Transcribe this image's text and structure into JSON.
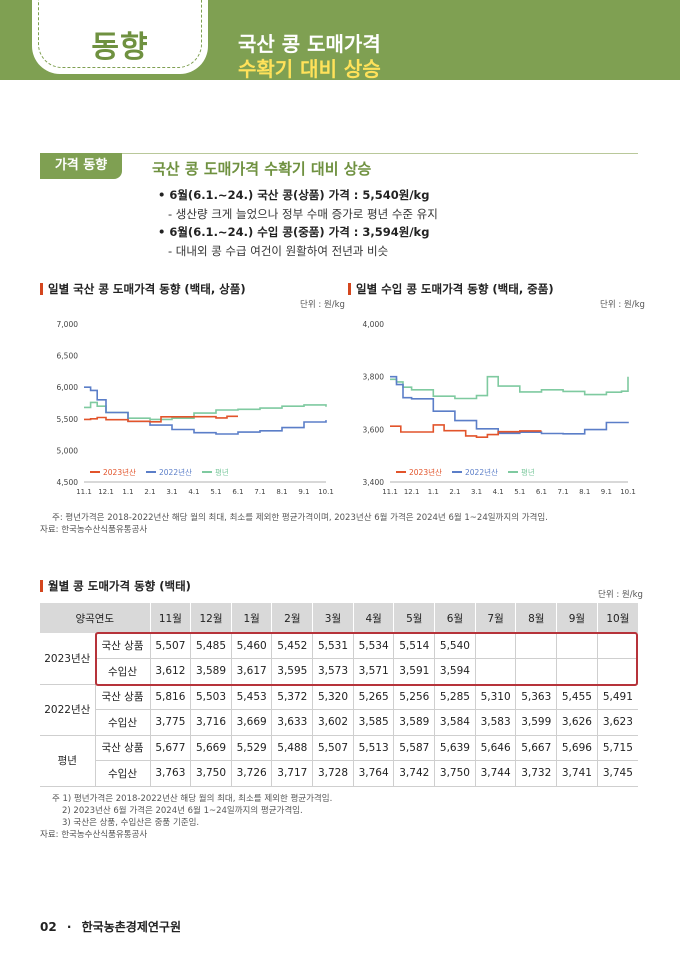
{
  "header": {
    "badge": "동향",
    "title_line1": "국산 콩 도매가격",
    "title_line2": "수확기 대비 상승",
    "bg_color": "#7fa052",
    "accent_color": "#ffe25a"
  },
  "section": {
    "tag": "가격 동향",
    "title": "국산 콩 도매가격 수확기 대비 상승",
    "bullets": [
      {
        "main": "• 6월(6.1.~24.) 국산 콩(상품) 가격 : 5,540원/kg",
        "sub": "- 생산량 크게 늘었으나 정부 수매 증가로 평년 수준 유지"
      },
      {
        "main": "• 6월(6.1.~24.) 수입 콩(중품) 가격 : 3,594원/kg",
        "sub": "- 대내외 콩 수급 여건이 원활하여 전년과 비슷"
      }
    ]
  },
  "chart_data": [
    {
      "type": "line",
      "title": "일별 국산 콩 도매가격 동향 (백태, 상품)",
      "unit": "단위 : 원/kg",
      "ylim": [
        4500,
        7000
      ],
      "yticks": [
        "7,000",
        "6,500",
        "6,000",
        "5,500",
        "5,000",
        "4,500"
      ],
      "xticks": [
        "11.1",
        "12.1",
        "1.1",
        "2.1",
        "3.1",
        "4.1",
        "5.1",
        "6.1",
        "7.1",
        "8.1",
        "9.1",
        "10.1"
      ],
      "legend": [
        "2023년산",
        "2022년산",
        "평년"
      ],
      "series": [
        {
          "name": "2023년산",
          "color": "#e2542b",
          "x": [
            0,
            0.3,
            0.6,
            1,
            2,
            3,
            3.5,
            4,
            5,
            6,
            6.5,
            7.0
          ],
          "values": [
            5490,
            5500,
            5520,
            5485,
            5460,
            5452,
            5531,
            5531,
            5534,
            5514,
            5540,
            5540
          ]
        },
        {
          "name": "2022년산",
          "color": "#5b7ec8",
          "x": [
            0,
            0.3,
            0.6,
            1,
            2,
            3,
            4,
            5,
            6,
            7,
            8,
            9,
            10,
            11
          ],
          "values": [
            6000,
            5950,
            5800,
            5600,
            5460,
            5400,
            5330,
            5280,
            5260,
            5290,
            5310,
            5360,
            5450,
            5480
          ]
        },
        {
          "name": "평년",
          "color": "#7fcaa0",
          "x": [
            0,
            0.3,
            0.6,
            1,
            2,
            3,
            4,
            5,
            6,
            7,
            8,
            9,
            10,
            11
          ],
          "values": [
            5680,
            5760,
            5700,
            5600,
            5510,
            5490,
            5510,
            5590,
            5640,
            5650,
            5670,
            5700,
            5720,
            5690
          ]
        }
      ]
    },
    {
      "type": "line",
      "title": "일별 수입 콩 도매가격 동향 (백태, 중품)",
      "unit": "단위 : 원/kg",
      "ylim": [
        3400,
        4000
      ],
      "yticks": [
        "4,000",
        "3,800",
        "3,600",
        "3,400"
      ],
      "xticks": [
        "11.1",
        "12.1",
        "1.1",
        "2.1",
        "3.1",
        "4.1",
        "5.1",
        "6.1",
        "7.1",
        "8.1",
        "9.1",
        "10.1"
      ],
      "legend": [
        "2023년산",
        "2022년산",
        "평년"
      ],
      "series": [
        {
          "name": "2023년산",
          "color": "#e2542b",
          "x": [
            0,
            0.5,
            1,
            2,
            2.5,
            3,
            3.5,
            4,
            4.5,
            5,
            6,
            7.0
          ],
          "values": [
            3612,
            3590,
            3590,
            3617,
            3595,
            3595,
            3575,
            3570,
            3580,
            3591,
            3594,
            3594
          ]
        },
        {
          "name": "2022년산",
          "color": "#5b7ec8",
          "x": [
            0,
            0.3,
            0.6,
            1,
            2,
            3,
            4,
            5,
            6,
            7,
            8,
            9,
            10,
            11
          ],
          "values": [
            3800,
            3770,
            3720,
            3716,
            3669,
            3633,
            3602,
            3585,
            3589,
            3584,
            3583,
            3599,
            3626,
            3623
          ]
        },
        {
          "name": "평년",
          "color": "#7fcaa0",
          "x": [
            0,
            0.3,
            0.6,
            1,
            2,
            3,
            4,
            4.5,
            5,
            6,
            7,
            8,
            9,
            10,
            10.7,
            11
          ],
          "values": [
            3790,
            3780,
            3760,
            3750,
            3726,
            3717,
            3728,
            3800,
            3764,
            3742,
            3750,
            3744,
            3732,
            3741,
            3745,
            3800
          ]
        }
      ]
    }
  ],
  "chart_note": "주: 평년가격은 2018-2022년산 해당 월의 최대, 최소를 제외한 평균가격이며, 2023년산 6월 가격은 2024년 6월 1~24일까지의 가격임.",
  "chart_source": "자료: 한국농수산식품유통공사",
  "table": {
    "title": "월별 콩 도매가격 동향 (백태)",
    "unit": "단위 : 원/kg",
    "headers": [
      "양곡연도",
      "11월",
      "12월",
      "1월",
      "2월",
      "3월",
      "4월",
      "5월",
      "6월",
      "7월",
      "8월",
      "9월",
      "10월"
    ],
    "groups": [
      {
        "year": "2023년산",
        "rows": [
          {
            "label": "국산 상품",
            "values": [
              "5,507",
              "5,485",
              "5,460",
              "5,452",
              "5,531",
              "5,534",
              "5,514",
              "5,540",
              "",
              "",
              "",
              ""
            ]
          },
          {
            "label": "수입산",
            "values": [
              "3,612",
              "3,589",
              "3,617",
              "3,595",
              "3,573",
              "3,571",
              "3,591",
              "3,594",
              "",
              "",
              "",
              ""
            ]
          }
        ]
      },
      {
        "year": "2022년산",
        "rows": [
          {
            "label": "국산 상품",
            "values": [
              "5,816",
              "5,503",
              "5,453",
              "5,372",
              "5,320",
              "5,265",
              "5,256",
              "5,285",
              "5,310",
              "5,363",
              "5,455",
              "5,491"
            ]
          },
          {
            "label": "수입산",
            "values": [
              "3,775",
              "3,716",
              "3,669",
              "3,633",
              "3,602",
              "3,585",
              "3,589",
              "3,584",
              "3,583",
              "3,599",
              "3,626",
              "3,623"
            ]
          }
        ]
      },
      {
        "year": "평년",
        "rows": [
          {
            "label": "국산 상품",
            "values": [
              "5,677",
              "5,669",
              "5,529",
              "5,488",
              "5,507",
              "5,513",
              "5,587",
              "5,639",
              "5,646",
              "5,667",
              "5,696",
              "5,715"
            ]
          },
          {
            "label": "수입산",
            "values": [
              "3,763",
              "3,750",
              "3,726",
              "3,717",
              "3,728",
              "3,764",
              "3,742",
              "3,750",
              "3,744",
              "3,732",
              "3,741",
              "3,745"
            ]
          }
        ]
      }
    ],
    "notes": [
      "주 1) 평년가격은 2018-2022년산 해당 월의 최대, 최소를 제외한 평균가격임.",
      "2) 2023년산 6월 가격은 2024년 6월 1~24일까지의 평균가격임.",
      "3) 국산은 상품, 수입산은 중품 기준임."
    ],
    "source": "자료: 한국농수산식품유통공사"
  },
  "footer": {
    "page": "02",
    "org": "한국농촌경제연구원"
  }
}
